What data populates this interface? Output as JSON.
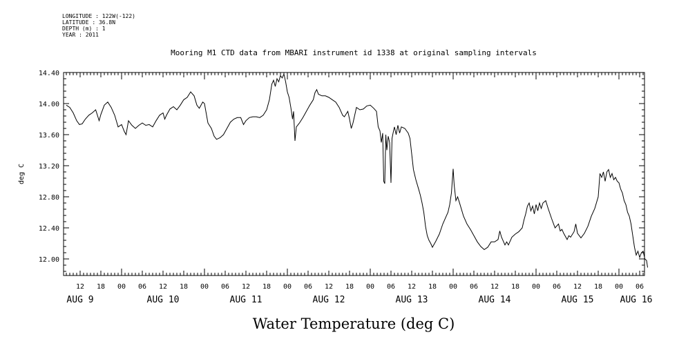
{
  "meta": {
    "longitude": "LONGITUDE : 122W(-122)",
    "latitude": "LATITUDE : 36.8N",
    "depth": "DEPTH (m) : 1",
    "year": "YEAR : 2011"
  },
  "chart_data": {
    "type": "line",
    "title": "Mooring M1 CTD data from MBARI instrument id 1338 at original sampling intervals",
    "xlabel": "Water Temperature (deg C)",
    "ylabel": "deg C",
    "ylim": [
      11.84,
      14.4
    ],
    "xlim_hours": [
      0,
      171
    ],
    "y_ticks": [
      "14.40",
      "14.00",
      "13.60",
      "13.20",
      "12.80",
      "12.40",
      "12.00"
    ],
    "y_tick_values": [
      14.4,
      14.0,
      13.6,
      13.2,
      12.8,
      12.4,
      12.0
    ],
    "x_hour_ticks": [
      {
        "h": 4,
        "label": "12"
      },
      {
        "h": 10,
        "label": "18"
      },
      {
        "h": 16,
        "label": "00"
      },
      {
        "h": 22,
        "label": "06"
      },
      {
        "h": 28,
        "label": "12"
      },
      {
        "h": 34,
        "label": "18"
      },
      {
        "h": 40,
        "label": "00"
      },
      {
        "h": 46,
        "label": "06"
      },
      {
        "h": 52,
        "label": "12"
      },
      {
        "h": 58,
        "label": "18"
      },
      {
        "h": 64,
        "label": "00"
      },
      {
        "h": 70,
        "label": "06"
      },
      {
        "h": 76,
        "label": "12"
      },
      {
        "h": 82,
        "label": "18"
      },
      {
        "h": 88,
        "label": "00"
      },
      {
        "h": 94,
        "label": "06"
      },
      {
        "h": 100,
        "label": "12"
      },
      {
        "h": 106,
        "label": "18"
      },
      {
        "h": 112,
        "label": "00"
      },
      {
        "h": 118,
        "label": "06"
      },
      {
        "h": 124,
        "label": "12"
      },
      {
        "h": 130,
        "label": "18"
      },
      {
        "h": 136,
        "label": "00"
      },
      {
        "h": 142,
        "label": "06"
      },
      {
        "h": 148,
        "label": "12"
      },
      {
        "h": 154,
        "label": "18"
      },
      {
        "h": 160,
        "label": "00"
      },
      {
        "h": 166,
        "label": "06"
      }
    ],
    "x_day_labels": [
      {
        "h": 4,
        "label": "AUG  9"
      },
      {
        "h": 28,
        "label": "AUG 10"
      },
      {
        "h": 52,
        "label": "AUG 11"
      },
      {
        "h": 76,
        "label": "AUG 12"
      },
      {
        "h": 100,
        "label": "AUG 13"
      },
      {
        "h": 124,
        "label": "AUG 14"
      },
      {
        "h": 148,
        "label": "AUG 15"
      },
      {
        "h": 165,
        "label": "AUG 16"
      }
    ],
    "series": [
      {
        "color": "#000000",
        "points": [
          [
            0,
            13.98
          ],
          [
            1,
            13.95
          ],
          [
            2,
            13.88
          ],
          [
            3,
            13.78
          ],
          [
            3.8,
            13.73
          ],
          [
            4.6,
            13.74
          ],
          [
            5.5,
            13.8
          ],
          [
            6.5,
            13.85
          ],
          [
            7.5,
            13.88
          ],
          [
            8.5,
            13.92
          ],
          [
            9.5,
            13.78
          ],
          [
            10,
            13.86
          ],
          [
            11,
            13.98
          ],
          [
            12,
            14.02
          ],
          [
            13,
            13.95
          ],
          [
            14,
            13.85
          ],
          [
            15,
            13.7
          ],
          [
            16,
            13.73
          ],
          [
            16.8,
            13.64
          ],
          [
            17.3,
            13.6
          ],
          [
            18,
            13.78
          ],
          [
            19,
            13.72
          ],
          [
            20,
            13.68
          ],
          [
            21,
            13.72
          ],
          [
            22,
            13.75
          ],
          [
            23,
            13.72
          ],
          [
            24,
            13.73
          ],
          [
            25,
            13.7
          ],
          [
            26,
            13.78
          ],
          [
            27,
            13.85
          ],
          [
            28,
            13.88
          ],
          [
            28.5,
            13.8
          ],
          [
            29,
            13.85
          ],
          [
            30,
            13.93
          ],
          [
            31,
            13.96
          ],
          [
            32,
            13.92
          ],
          [
            33,
            13.98
          ],
          [
            34,
            14.05
          ],
          [
            35,
            14.08
          ],
          [
            36,
            14.15
          ],
          [
            37,
            14.1
          ],
          [
            37.8,
            13.98
          ],
          [
            38.5,
            13.94
          ],
          [
            39.5,
            14.02
          ],
          [
            40,
            14.0
          ],
          [
            41,
            13.75
          ],
          [
            42,
            13.68
          ],
          [
            42.8,
            13.58
          ],
          [
            43.5,
            13.54
          ],
          [
            44.5,
            13.56
          ],
          [
            45.5,
            13.6
          ],
          [
            46.5,
            13.68
          ],
          [
            47.5,
            13.76
          ],
          [
            48.5,
            13.8
          ],
          [
            49.5,
            13.82
          ],
          [
            50.5,
            13.82
          ],
          [
            51.3,
            13.73
          ],
          [
            52,
            13.78
          ],
          [
            53,
            13.82
          ],
          [
            54,
            13.83
          ],
          [
            55,
            13.83
          ],
          [
            56,
            13.82
          ],
          [
            57,
            13.85
          ],
          [
            58,
            13.92
          ],
          [
            58.8,
            14.05
          ],
          [
            59.5,
            14.25
          ],
          [
            60,
            14.3
          ],
          [
            60.5,
            14.22
          ],
          [
            61,
            14.32
          ],
          [
            61.5,
            14.28
          ],
          [
            62,
            14.36
          ],
          [
            62.5,
            14.33
          ],
          [
            63,
            14.38
          ],
          [
            63.5,
            14.28
          ],
          [
            64,
            14.15
          ],
          [
            64.5,
            14.08
          ],
          [
            65,
            13.95
          ],
          [
            65.5,
            13.8
          ],
          [
            65.8,
            13.9
          ],
          [
            66.2,
            13.52
          ],
          [
            66.6,
            13.7
          ],
          [
            67.5,
            13.75
          ],
          [
            68.5,
            13.82
          ],
          [
            69.5,
            13.9
          ],
          [
            70.5,
            13.98
          ],
          [
            71.5,
            14.05
          ],
          [
            72,
            14.14
          ],
          [
            72.5,
            14.18
          ],
          [
            73,
            14.12
          ],
          [
            74,
            14.1
          ],
          [
            75,
            14.1
          ],
          [
            76,
            14.08
          ],
          [
            77,
            14.05
          ],
          [
            78,
            14.02
          ],
          [
            79,
            13.95
          ],
          [
            80,
            13.85
          ],
          [
            80.5,
            13.83
          ],
          [
            81.5,
            13.9
          ],
          [
            82,
            13.8
          ],
          [
            82.5,
            13.68
          ],
          [
            83,
            13.75
          ],
          [
            84,
            13.95
          ],
          [
            85,
            13.92
          ],
          [
            86,
            13.93
          ],
          [
            87,
            13.97
          ],
          [
            88,
            13.98
          ],
          [
            89,
            13.94
          ],
          [
            89.8,
            13.9
          ],
          [
            90.3,
            13.7
          ],
          [
            90.8,
            13.65
          ],
          [
            91.2,
            13.5
          ],
          [
            91.6,
            13.62
          ],
          [
            91.9,
            13.0
          ],
          [
            92.2,
            12.97
          ],
          [
            92.5,
            13.6
          ],
          [
            92.8,
            13.4
          ],
          [
            93.2,
            13.58
          ],
          [
            93.6,
            13.5
          ],
          [
            94,
            12.98
          ],
          [
            94.3,
            13.55
          ],
          [
            94.6,
            13.62
          ],
          [
            95,
            13.7
          ],
          [
            95.5,
            13.6
          ],
          [
            96,
            13.72
          ],
          [
            96.5,
            13.62
          ],
          [
            97,
            13.7
          ],
          [
            98,
            13.68
          ],
          [
            99,
            13.62
          ],
          [
            99.5,
            13.55
          ],
          [
            100,
            13.35
          ],
          [
            100.5,
            13.15
          ],
          [
            101.2,
            13.02
          ],
          [
            102,
            12.9
          ],
          [
            102.5,
            12.82
          ],
          [
            103,
            12.72
          ],
          [
            103.5,
            12.6
          ],
          [
            104,
            12.42
          ],
          [
            104.5,
            12.3
          ],
          [
            105,
            12.24
          ],
          [
            105.5,
            12.2
          ],
          [
            106,
            12.15
          ],
          [
            107,
            12.23
          ],
          [
            108,
            12.32
          ],
          [
            109,
            12.45
          ],
          [
            110,
            12.55
          ],
          [
            110.5,
            12.6
          ],
          [
            111,
            12.7
          ],
          [
            111.5,
            12.85
          ],
          [
            112,
            13.16
          ],
          [
            112.3,
            12.95
          ],
          [
            112.8,
            12.75
          ],
          [
            113.3,
            12.8
          ],
          [
            114,
            12.7
          ],
          [
            115,
            12.55
          ],
          [
            116,
            12.45
          ],
          [
            117,
            12.38
          ],
          [
            118,
            12.3
          ],
          [
            119,
            12.22
          ],
          [
            120,
            12.16
          ],
          [
            121,
            12.12
          ],
          [
            122,
            12.15
          ],
          [
            123,
            12.22
          ],
          [
            124,
            12.22
          ],
          [
            125,
            12.25
          ],
          [
            125.5,
            12.36
          ],
          [
            126,
            12.28
          ],
          [
            127,
            12.18
          ],
          [
            127.5,
            12.22
          ],
          [
            128,
            12.18
          ],
          [
            129,
            12.28
          ],
          [
            130,
            12.32
          ],
          [
            131,
            12.35
          ],
          [
            132,
            12.4
          ],
          [
            132.5,
            12.5
          ],
          [
            133,
            12.58
          ],
          [
            133.5,
            12.68
          ],
          [
            134,
            12.72
          ],
          [
            134.5,
            12.62
          ],
          [
            135,
            12.68
          ],
          [
            135.5,
            12.58
          ],
          [
            136,
            12.7
          ],
          [
            136.5,
            12.62
          ],
          [
            137,
            12.72
          ],
          [
            137.5,
            12.65
          ],
          [
            138,
            12.72
          ],
          [
            138.8,
            12.75
          ],
          [
            139.5,
            12.65
          ],
          [
            140.5,
            12.52
          ],
          [
            141.5,
            12.4
          ],
          [
            142.5,
            12.45
          ],
          [
            143,
            12.36
          ],
          [
            143.5,
            12.38
          ],
          [
            144,
            12.33
          ],
          [
            145,
            12.25
          ],
          [
            145.5,
            12.3
          ],
          [
            146,
            12.28
          ],
          [
            147,
            12.35
          ],
          [
            147.5,
            12.45
          ],
          [
            148,
            12.33
          ],
          [
            149,
            12.27
          ],
          [
            150,
            12.33
          ],
          [
            151,
            12.42
          ],
          [
            152,
            12.55
          ],
          [
            153,
            12.65
          ],
          [
            154,
            12.8
          ],
          [
            154.5,
            13.1
          ],
          [
            155,
            13.05
          ],
          [
            155.5,
            13.12
          ],
          [
            156,
            13.0
          ],
          [
            156.5,
            13.12
          ],
          [
            157,
            13.15
          ],
          [
            157.5,
            13.05
          ],
          [
            158,
            13.1
          ],
          [
            158.5,
            13.02
          ],
          [
            159,
            13.05
          ],
          [
            159.5,
            13.0
          ],
          [
            160,
            12.98
          ],
          [
            160.5,
            12.9
          ],
          [
            161,
            12.85
          ],
          [
            161.5,
            12.75
          ],
          [
            162,
            12.7
          ],
          [
            162.5,
            12.6
          ],
          [
            163,
            12.55
          ],
          [
            163.5,
            12.45
          ],
          [
            164,
            12.3
          ],
          [
            164.5,
            12.15
          ],
          [
            165,
            12.05
          ],
          [
            165.5,
            12.1
          ],
          [
            166,
            12.02
          ],
          [
            166.5,
            12.08
          ],
          [
            167,
            12.1
          ],
          [
            167.5,
            12.0
          ],
          [
            168,
            11.98
          ],
          [
            168.3,
            11.89
          ]
        ]
      }
    ]
  }
}
